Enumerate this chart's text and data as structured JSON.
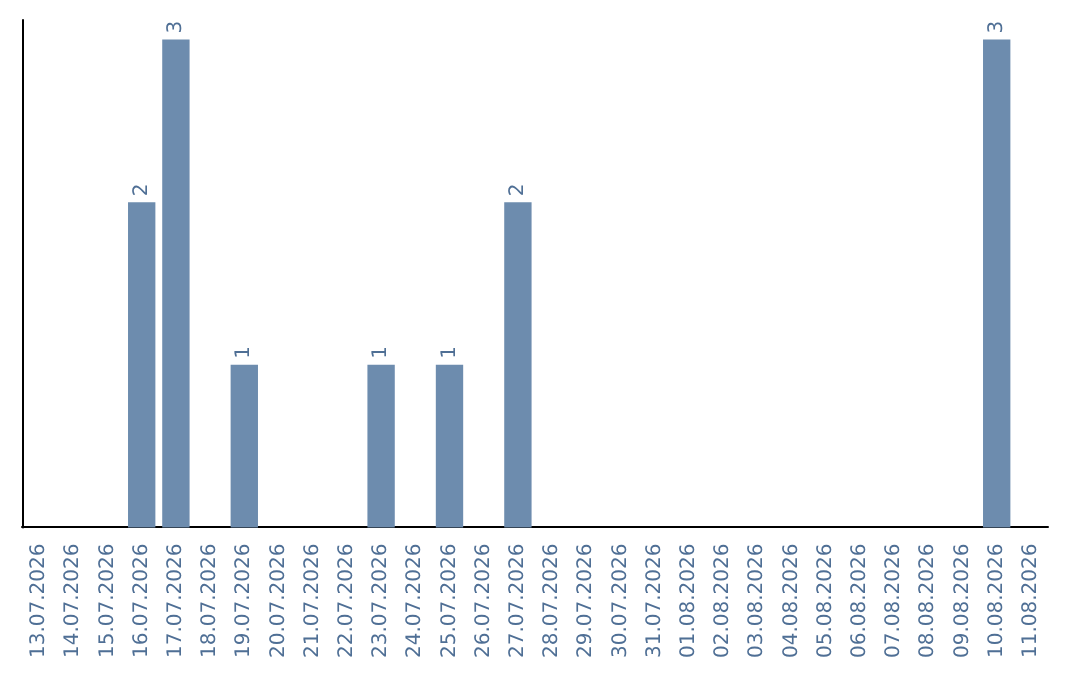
{
  "chart_data": {
    "type": "bar",
    "categories": [
      "13.07.2026",
      "14.07.2026",
      "15.07.2026",
      "16.07.2026",
      "17.07.2026",
      "18.07.2026",
      "19.07.2026",
      "20.07.2026",
      "21.07.2026",
      "22.07.2026",
      "23.07.2026",
      "24.07.2026",
      "25.07.2026",
      "26.07.2026",
      "27.07.2026",
      "28.07.2026",
      "29.07.2026",
      "30.07.2026",
      "31.07.2026",
      "01.08.2026",
      "02.08.2026",
      "03.08.2026",
      "04.08.2026",
      "05.08.2026",
      "06.08.2026",
      "07.08.2026",
      "08.08.2026",
      "09.08.2026",
      "10.08.2026",
      "11.08.2026"
    ],
    "values": [
      0,
      0,
      0,
      2,
      3,
      0,
      1,
      0,
      0,
      0,
      1,
      0,
      1,
      0,
      2,
      0,
      0,
      0,
      0,
      0,
      0,
      0,
      0,
      0,
      0,
      0,
      0,
      0,
      3,
      0
    ],
    "value_labels": [
      null,
      null,
      null,
      "2",
      "3",
      null,
      "1",
      null,
      null,
      null,
      "1",
      null,
      "1",
      null,
      "2",
      null,
      null,
      null,
      null,
      null,
      null,
      null,
      null,
      null,
      null,
      null,
      null,
      null,
      "3",
      null
    ],
    "color": "#6d8cae",
    "grid": false,
    "tick_labels": "x"
  }
}
